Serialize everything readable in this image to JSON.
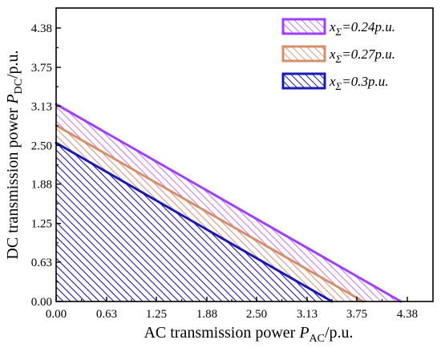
{
  "chart_data": {
    "type": "area",
    "xlabel": {
      "main": "AC transmission power ",
      "var": "P",
      "sub": "AC",
      "unit": "/p.u."
    },
    "ylabel": {
      "main": "DC transmission power ",
      "var": "P",
      "sub": "DC",
      "unit": "/p.u."
    },
    "xlim": [
      0,
      4.7
    ],
    "ylim": [
      0,
      4.7
    ],
    "xticks": [
      0.0,
      0.63,
      1.25,
      1.88,
      2.5,
      3.13,
      3.75,
      4.38
    ],
    "yticks": [
      0.0,
      0.63,
      1.25,
      1.88,
      2.5,
      3.13,
      3.75,
      4.38
    ],
    "xtick_labels": [
      "0.00",
      "0.63",
      "1.25",
      "1.88",
      "2.50",
      "3.13",
      "3.75",
      "4.38"
    ],
    "ytick_labels": [
      "0.00",
      "0.63",
      "1.25",
      "1.88",
      "2.50",
      "3.13",
      "3.75",
      "4.38"
    ],
    "legend_position": "top-right",
    "series": [
      {
        "name": "xΣ=0.24p.u.",
        "label_var": "x",
        "label_sub": "Σ",
        "label_rest": "=0.24p.u.",
        "points": [
          [
            0,
            3.16
          ],
          [
            4.3,
            0
          ]
        ],
        "color": "#a040ff",
        "hatch": "#c880e8"
      },
      {
        "name": "xΣ=0.27p.u.",
        "label_var": "x",
        "label_sub": "Σ",
        "label_rest": "=0.27p.u.",
        "points": [
          [
            0,
            2.82
          ],
          [
            3.83,
            0
          ]
        ],
        "color": "#d4906a",
        "hatch": "#d8a488"
      },
      {
        "name": "xΣ=0.3p.u.",
        "label_var": "x",
        "label_sub": "Σ",
        "label_rest": "=0.3p.u.",
        "points": [
          [
            0,
            2.54
          ],
          [
            3.44,
            0
          ]
        ],
        "color": "#1a1ab0",
        "hatch": "#2a2aa8"
      }
    ]
  }
}
